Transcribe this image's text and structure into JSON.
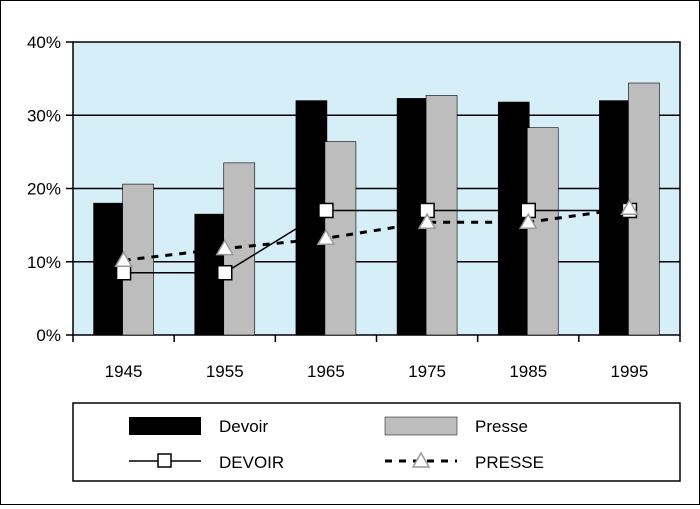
{
  "chart_data": {
    "type": "bar",
    "categories": [
      "1945",
      "1955",
      "1965",
      "1975",
      "1985",
      "1995"
    ],
    "yticks": [
      "0%",
      "10%",
      "20%",
      "30%",
      "40%"
    ],
    "ylim": [
      0,
      40
    ],
    "grid": true,
    "plot_background": "#d6eef7",
    "series": [
      {
        "name": "Devoir",
        "kind": "bar",
        "color": "#000000",
        "values": [
          18,
          16.5,
          32,
          32.3,
          31.8,
          32
        ]
      },
      {
        "name": "Presse",
        "kind": "bar",
        "color": "#bdbdbd",
        "values": [
          20.6,
          23.5,
          26.4,
          32.7,
          28.3,
          34.4
        ]
      },
      {
        "name": "DEVOIR",
        "kind": "line",
        "marker": "square",
        "line_style": "solid",
        "color": "#000000",
        "values": [
          8.5,
          8.5,
          17,
          17,
          17,
          17
        ]
      },
      {
        "name": "PRESSE",
        "kind": "line",
        "marker": "triangle",
        "line_style": "dashed",
        "color": "#000000",
        "values": [
          10.2,
          11.8,
          13.2,
          15.4,
          15.4,
          17.3
        ]
      }
    ],
    "legend_position": "bottom"
  }
}
